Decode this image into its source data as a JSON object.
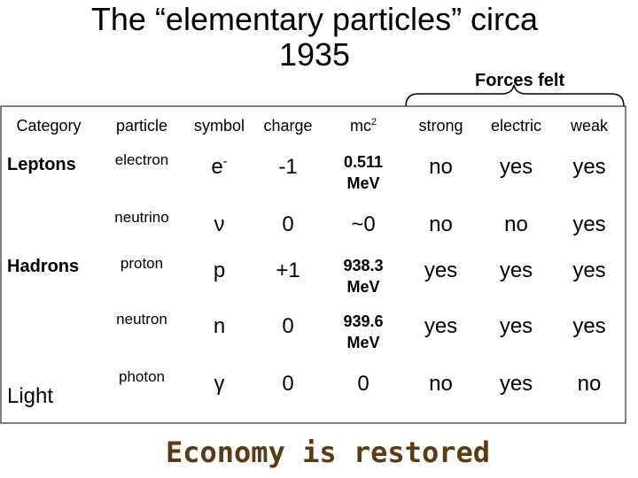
{
  "header": {
    "title": "The “elementary particles” circa 1935",
    "forces_label": "Forces felt"
  },
  "table": {
    "columns": [
      {
        "text": "Category"
      },
      {
        "text": "particle"
      },
      {
        "text": "symbol"
      },
      {
        "text": "charge"
      },
      {
        "text": "mc",
        "sup": "2"
      },
      {
        "text": "strong"
      },
      {
        "text": "electric"
      },
      {
        "text": "weak"
      }
    ],
    "rows": [
      {
        "category": "Leptons",
        "particle": "electron",
        "symbol": "e",
        "symbol_sup": "-",
        "charge": "-1",
        "mass": "0.511 MeV",
        "strong": "no",
        "electric": "yes",
        "weak": "yes"
      },
      {
        "particle": "neutrino",
        "symbol": "ν",
        "charge": "0",
        "mass": "~0",
        "strong": "no",
        "electric": "no",
        "weak": "yes"
      },
      {
        "category": "Hadrons",
        "particle": "proton",
        "symbol": "p",
        "charge": "+1",
        "mass": "938.3 MeV",
        "strong": "yes",
        "electric": "yes",
        "weak": "yes"
      },
      {
        "particle": "neutron",
        "symbol": "n",
        "charge": "0",
        "mass": "939.6 MeV",
        "strong": "yes",
        "electric": "yes",
        "weak": "yes"
      },
      {
        "category": "Light",
        "particle": "photon",
        "symbol": "γ",
        "charge": "0",
        "mass": "0",
        "strong": "no",
        "electric": "yes",
        "weak": "no"
      }
    ]
  },
  "footer": {
    "text": "Economy is restored"
  }
}
